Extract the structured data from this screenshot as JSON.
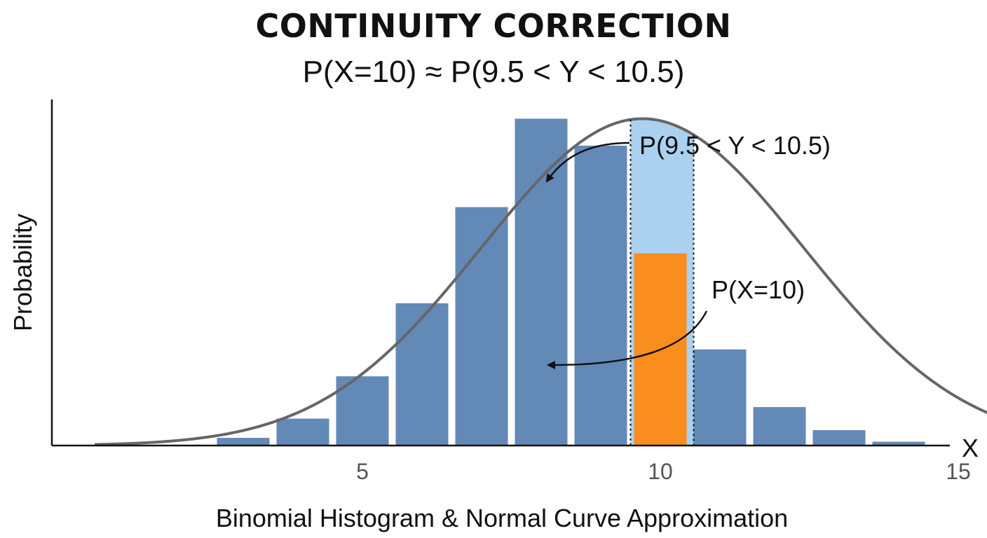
{
  "chart_data": {
    "type": "bar",
    "title": "CONTINUITY CORRECTION",
    "subtitle": "P(X=10) ≈ P(9.5 < Y < 10.5)",
    "xlabel": "Binomial Histogram & Normal Curve Approximation",
    "x_axis_name": "X",
    "ylabel": "Probability",
    "x": [
      1,
      2,
      3,
      4,
      5,
      6,
      7,
      8,
      9,
      10,
      11,
      12,
      13,
      14,
      15,
      16,
      17
    ],
    "values": [
      0.0,
      0.0,
      0.002,
      0.007,
      0.018,
      0.037,
      0.062,
      0.085,
      0.078,
      0.05,
      0.025,
      0.01,
      0.004,
      0.001,
      0.0,
      0.0,
      0.0
    ],
    "highlight_x": 10,
    "xticks": [
      5,
      10,
      15
    ],
    "xlim": [
      1,
      17
    ],
    "ylim": [
      0,
      0.09
    ],
    "grid": false,
    "normal_curve": {
      "mean": 9.2,
      "sd": 2.7,
      "peak": 0.085,
      "shaded_range": [
        9.5,
        10.5
      ]
    },
    "annotations": [
      {
        "text": "P(9.5 < Y < 10.5)",
        "target": "shaded-area"
      },
      {
        "text": "P(X=10)",
        "target": "highlighted-bar"
      }
    ],
    "colors": {
      "bar": "#6389B7",
      "highlight": "#F98D1E",
      "shade": "#ABD1EE",
      "curve": "#666666",
      "axis": "#111111"
    }
  }
}
